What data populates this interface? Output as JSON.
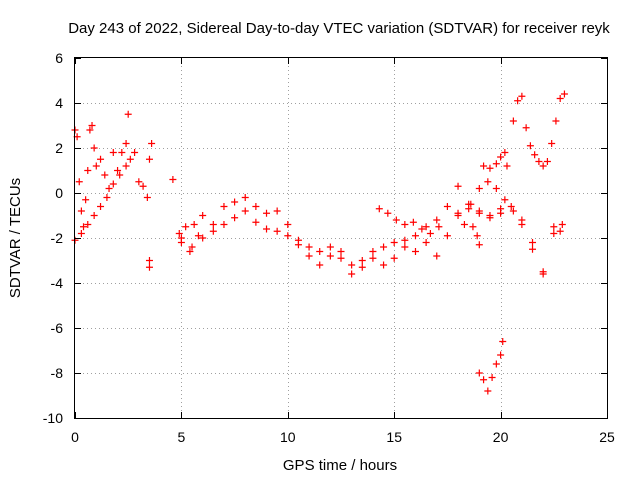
{
  "chart_data": {
    "type": "scatter",
    "title": "Day 243 of 2022, Sidereal Day-to-day VTEC variation (SDTVAR) for receiver reyk",
    "xlabel": "GPS time / hours",
    "ylabel": "SDTVAR / TECUs",
    "xlim": [
      0,
      25
    ],
    "ylim": [
      -10,
      6
    ],
    "xticks": [
      0,
      5,
      10,
      15,
      20,
      25
    ],
    "yticks": [
      -10,
      -8,
      -6,
      -4,
      -2,
      0,
      2,
      4,
      6
    ],
    "xtick_labels": [
      "0",
      "5",
      "10",
      "15",
      "20",
      "25"
    ],
    "ytick_labels": [
      "-10",
      "-8",
      "-6",
      "-4",
      "-2",
      "0",
      "2",
      "4",
      "6"
    ],
    "grid": true,
    "marker": "+",
    "series_color": "#ff0000",
    "series": [
      {
        "name": "reyk",
        "x": [
          0.0,
          0.1,
          0.2,
          0.3,
          0.4,
          0.5,
          0.6,
          0.7,
          0.8,
          0.9,
          1.0,
          1.2,
          1.4,
          1.6,
          1.8,
          2.0,
          2.2,
          2.4,
          2.5,
          2.6,
          2.8,
          3.0,
          3.2,
          3.4,
          3.5,
          3.6,
          3.5,
          3.5,
          4.6,
          4.9,
          5.0,
          5.2,
          5.4,
          5.6,
          5.8,
          6.0,
          6.5,
          7.0,
          7.5,
          8.0,
          8.5,
          9.0,
          9.5,
          10.0,
          10.5,
          11.0,
          11.5,
          12.0,
          12.5,
          13.0,
          13.5,
          14.0,
          14.5,
          15.0,
          15.5,
          16.0,
          16.5,
          17.0,
          17.5,
          18.0,
          18.5,
          19.0,
          19.5,
          20.0,
          20.3,
          20.6,
          20.8,
          21.0,
          21.2,
          21.4,
          21.6,
          21.8,
          22.0,
          22.2,
          22.4,
          22.6,
          22.8,
          23.0,
          0.0,
          0.3,
          0.6,
          0.9,
          1.2,
          1.5,
          1.8,
          2.1,
          2.4,
          5.0,
          5.5,
          6.0,
          6.5,
          7.0,
          7.5,
          8.0,
          8.5,
          9.0,
          9.5,
          10.0,
          10.5,
          11.0,
          11.5,
          12.0,
          12.5,
          13.0,
          13.5,
          14.0,
          14.5,
          15.0,
          15.5,
          16.0,
          16.5,
          17.0,
          17.5,
          18.0,
          18.5,
          19.0,
          19.5,
          20.0,
          20.5,
          21.0,
          21.5,
          22.0,
          22.5,
          22.9,
          19.0,
          19.2,
          19.4,
          19.6,
          19.8,
          20.0,
          20.1,
          19.2,
          19.5,
          19.8,
          20.0,
          20.2,
          14.3,
          14.7,
          15.1,
          15.5,
          15.9,
          16.3,
          16.7,
          17.1,
          18.0,
          18.3,
          18.6,
          19.0,
          19.4,
          19.8,
          20.2,
          20.6,
          21.0,
          21.5,
          22.0,
          22.5,
          22.8,
          18.7,
          18.9,
          19.0
        ],
        "y": [
          2.8,
          2.5,
          0.5,
          -0.8,
          -1.5,
          -0.3,
          1.0,
          2.8,
          3.0,
          2.0,
          1.2,
          1.5,
          0.8,
          0.2,
          1.8,
          1.0,
          1.8,
          2.2,
          3.5,
          1.5,
          1.8,
          0.5,
          0.3,
          -0.2,
          1.5,
          2.2,
          -3.0,
          -3.3,
          0.6,
          -1.8,
          -2.0,
          -1.5,
          -2.6,
          -1.4,
          -1.9,
          -1.0,
          -1.4,
          -0.6,
          -0.4,
          -0.2,
          -0.6,
          -0.9,
          -0.8,
          -1.4,
          -2.3,
          -2.8,
          -3.2,
          -2.8,
          -2.6,
          -3.6,
          -3.3,
          -2.9,
          -3.2,
          -2.9,
          -2.4,
          -2.6,
          -2.2,
          -2.8,
          -1.9,
          -0.9,
          -0.7,
          -0.9,
          -1.1,
          -0.7,
          1.2,
          3.2,
          4.1,
          4.3,
          2.9,
          2.1,
          1.7,
          1.4,
          1.2,
          1.4,
          2.2,
          3.2,
          4.2,
          4.4,
          -2.1,
          -1.8,
          -1.4,
          -1.0,
          -0.6,
          -0.2,
          0.4,
          0.8,
          1.2,
          -2.2,
          -2.4,
          -2.0,
          -1.7,
          -1.4,
          -1.1,
          -0.8,
          -1.3,
          -1.6,
          -1.7,
          -1.9,
          -2.1,
          -2.4,
          -2.6,
          -2.4,
          -2.9,
          -3.2,
          -3.0,
          -2.6,
          -2.4,
          -2.2,
          -2.1,
          -1.9,
          -1.5,
          -1.2,
          -0.6,
          0.3,
          -0.5,
          -0.8,
          -1.0,
          -0.9,
          -0.6,
          -1.2,
          -2.2,
          -3.6,
          -1.8,
          -1.4,
          -8.0,
          -8.3,
          -8.8,
          -8.2,
          -7.6,
          -7.2,
          -6.6,
          1.2,
          1.1,
          1.3,
          1.6,
          1.8,
          -0.7,
          -0.9,
          -1.2,
          -1.4,
          -1.3,
          -1.6,
          -1.8,
          -1.5,
          -1.0,
          -1.4,
          -0.5,
          0.2,
          0.5,
          0.2,
          -0.3,
          -0.8,
          -1.4,
          -2.5,
          -3.5,
          -1.5,
          -1.7,
          -1.5,
          -1.9,
          -2.3
        ]
      }
    ]
  }
}
